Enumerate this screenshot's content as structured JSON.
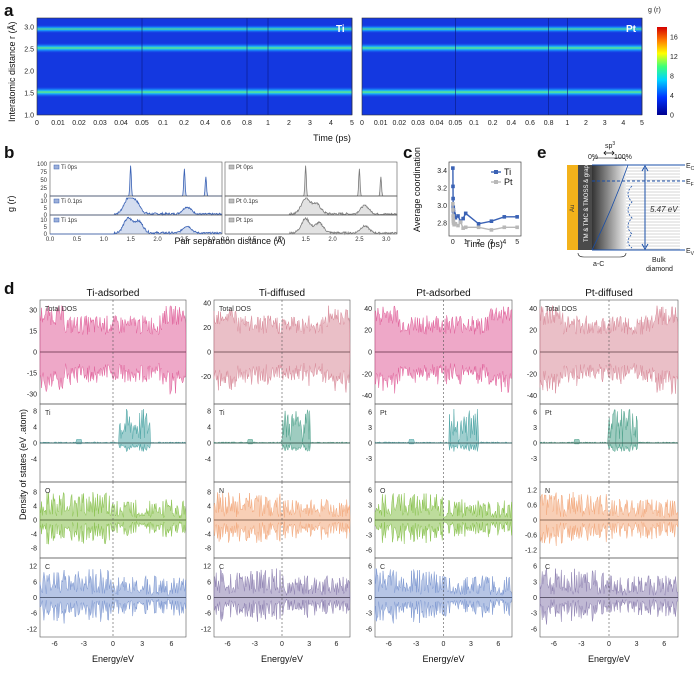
{
  "panel_labels": {
    "a": "a",
    "b": "b",
    "c": "c",
    "d": "d",
    "e": "e"
  },
  "chart_data": [
    {
      "panel": "a",
      "type": "heatmap",
      "ylabel": "Interatomic distance r (Å)",
      "xlabel": "Time (ps)",
      "colorbar_label": "g (r)",
      "colorbar_ticks": [
        "0",
        "4",
        "8",
        "12",
        "16"
      ],
      "colorbar_range": [
        0,
        18
      ],
      "ylim": [
        1.0,
        3.2
      ],
      "yticks": [
        "1.0",
        "1.5",
        "2.0",
        "2.5",
        "3.0"
      ],
      "xticks": [
        "0",
        "0.01",
        "0.02",
        "0.03",
        "0.04",
        "0.05",
        "0.1",
        "0.2",
        "0.4",
        "0.6",
        "0.8",
        "1",
        "2",
        "3",
        "4",
        "5"
      ],
      "maps": [
        {
          "name": "Ti",
          "bands": [
            {
              "r": 1.52,
              "intensity": 14
            },
            {
              "r": 2.52,
              "intensity": 13
            },
            {
              "r": 2.95,
              "intensity": 9
            }
          ]
        },
        {
          "name": "Pt",
          "bands": [
            {
              "r": 1.52,
              "intensity": 14
            },
            {
              "r": 2.52,
              "intensity": 13
            },
            {
              "r": 2.95,
              "intensity": 9
            }
          ]
        }
      ]
    },
    {
      "panel": "b",
      "type": "line",
      "ylabel": "g (r)",
      "xlabel": "Pair separation distance (Å)",
      "xlim": [
        0.0,
        3.2
      ],
      "xticks": [
        "0.0",
        "0.5",
        "1.0",
        "1.5",
        "2.0",
        "2.5",
        "3.0"
      ],
      "yticks": [
        "0",
        "25",
        "50",
        "75",
        "100"
      ],
      "top_ylim": [
        0,
        100
      ],
      "lower_yticks": [
        "0",
        "5",
        "10"
      ],
      "lower_ylim": [
        0,
        12
      ],
      "series": [
        {
          "name": "Ti 0ps",
          "color": "#3a62b5",
          "peaks": [
            {
              "x": 1.5,
              "y": 95
            },
            {
              "x": 2.5,
              "y": 85
            },
            {
              "x": 2.9,
              "y": 60
            }
          ]
        },
        {
          "name": "Pt 0ps",
          "color": "#7a7a7a",
          "peaks": [
            {
              "x": 1.5,
              "y": 95
            },
            {
              "x": 2.5,
              "y": 85
            },
            {
              "x": 2.9,
              "y": 60
            }
          ]
        },
        {
          "name": "Ti 0.1ps",
          "color": "#3a62b5",
          "peaks": [
            {
              "x": 1.45,
              "y": 10
            },
            {
              "x": 1.6,
              "y": 8
            },
            {
              "x": 2.55,
              "y": 5
            }
          ]
        },
        {
          "name": "Pt 0.1ps",
          "color": "#7a7a7a",
          "peaks": [
            {
              "x": 1.5,
              "y": 11
            },
            {
              "x": 1.7,
              "y": 7
            },
            {
              "x": 2.6,
              "y": 6
            }
          ]
        },
        {
          "name": "Ti 1ps",
          "color": "#3a62b5",
          "peaks": [
            {
              "x": 1.45,
              "y": 10
            },
            {
              "x": 1.65,
              "y": 8
            },
            {
              "x": 2.55,
              "y": 5
            }
          ]
        },
        {
          "name": "Pt 1ps",
          "color": "#7a7a7a",
          "peaks": [
            {
              "x": 1.5,
              "y": 10
            },
            {
              "x": 1.75,
              "y": 7
            },
            {
              "x": 2.6,
              "y": 5
            }
          ]
        }
      ]
    },
    {
      "panel": "c",
      "type": "line",
      "ylabel": "Average coordination",
      "xlabel": "Time (ps)",
      "xlim": [
        -0.3,
        5.3
      ],
      "ylim": [
        2.65,
        3.5
      ],
      "xticks": [
        0,
        1,
        2,
        3,
        4,
        5
      ],
      "yticks": [
        "2.8",
        "3.0",
        "3.2",
        "3.4"
      ],
      "legend_position": "top-right",
      "series": [
        {
          "name": "Ti",
          "color": "#3a62b5",
          "x": [
            0,
            0.01,
            0.02,
            0.03,
            0.04,
            0.05,
            0.1,
            0.2,
            0.4,
            0.6,
            0.8,
            1,
            2,
            3,
            4,
            5
          ],
          "y": [
            3.43,
            3.22,
            3.08,
            2.98,
            2.95,
            2.93,
            2.9,
            2.86,
            2.88,
            2.82,
            2.85,
            2.91,
            2.79,
            2.82,
            2.87,
            2.87
          ]
        },
        {
          "name": "Pt",
          "color": "#b8b8b8",
          "x": [
            0,
            0.01,
            0.02,
            0.03,
            0.04,
            0.05,
            0.1,
            0.2,
            0.4,
            0.6,
            0.8,
            1,
            2,
            3,
            4,
            5
          ],
          "y": [
            3.02,
            2.95,
            2.88,
            2.84,
            2.82,
            2.8,
            2.78,
            2.79,
            2.77,
            2.81,
            2.74,
            2.75,
            2.75,
            2.72,
            2.75,
            2.75
          ]
        }
      ]
    },
    {
      "panel": "d",
      "type": "area",
      "ylabel": "Density of states (eV .atom)",
      "xlabel": "Energy/eV",
      "xlim": [
        -7.5,
        7.5
      ],
      "xticks": [
        "-6",
        "-3",
        "0",
        "3",
        "6"
      ],
      "columns": [
        {
          "title": "Ti-adsorbed",
          "rows": [
            {
              "label": "Total DOS",
              "color": "#e0609a",
              "yticks": [
                "30",
                "15",
                "0",
                "-15",
                "-30"
              ],
              "ymax": 35
            },
            {
              "label": "Ti",
              "color": "#4fa6a6",
              "yticks": [
                "8",
                "4",
                "0",
                "-4"
              ],
              "ymax": 9
            },
            {
              "label": "O",
              "color": "#86c04a",
              "yticks": [
                "8",
                "4",
                "0",
                "-4",
                "-8"
              ],
              "ymax": 10
            },
            {
              "label": "C",
              "color": "#7a95d0",
              "yticks": [
                "12",
                "6",
                "0",
                "-6",
                "-12"
              ],
              "ymax": 14
            }
          ]
        },
        {
          "title": "Ti-diffused",
          "rows": [
            {
              "label": "Total DOS",
              "color": "#d88a99",
              "yticks": [
                "40",
                "20",
                "0",
                "-20"
              ],
              "ymax": 40
            },
            {
              "label": "Ti",
              "color": "#4fa28c",
              "yticks": [
                "8",
                "4",
                "0",
                "-4"
              ],
              "ymax": 9
            },
            {
              "label": "N",
              "color": "#f2a77a",
              "yticks": [
                "8",
                "4",
                "0",
                "-4",
                "-8"
              ],
              "ymax": 10
            },
            {
              "label": "C",
              "color": "#8c7fb0",
              "yticks": [
                "12",
                "6",
                "0",
                "-6",
                "-12"
              ],
              "ymax": 14
            }
          ]
        },
        {
          "title": "Pt-adsorbed",
          "rows": [
            {
              "label": "",
              "color": "#e0609a",
              "yticks": [
                "40",
                "20",
                "0",
                "-20",
                "-40"
              ],
              "ymax": 45
            },
            {
              "label": "Pt",
              "color": "#4fa6a6",
              "yticks": [
                "6",
                "3",
                "0",
                "-3"
              ],
              "ymax": 7
            },
            {
              "label": "O",
              "color": "#86c04a",
              "yticks": [
                "6",
                "3",
                "0",
                "-3",
                "-6"
              ],
              "ymax": 7
            },
            {
              "label": "C",
              "color": "#7a95d0",
              "yticks": [
                "6",
                "3",
                "0",
                "-3",
                "-6"
              ],
              "ymax": 7
            }
          ]
        },
        {
          "title": "Pt-diffused",
          "rows": [
            {
              "label": "Total DOS",
              "color": "#d88a99",
              "yticks": [
                "40",
                "20",
                "0",
                "-20",
                "-40"
              ],
              "ymax": 45
            },
            {
              "label": "Pt",
              "color": "#4fa28c",
              "yticks": [
                "6",
                "3",
                "0",
                "-3"
              ],
              "ymax": 7
            },
            {
              "label": "N",
              "color": "#f2a77a",
              "yticks": [
                "1.2",
                "0.6",
                "0",
                "-0.6",
                "-1.2"
              ],
              "ymax": 1.4
            },
            {
              "label": "C",
              "color": "#8c7fb0",
              "yticks": [
                "6",
                "3",
                "0",
                "-3",
                "-6"
              ],
              "ymax": 7
            }
          ]
        }
      ]
    }
  ],
  "panel_e": {
    "sp3_label": "sp",
    "sp3_sup": "3",
    "pct_left": "0%",
    "pct_right": "100%",
    "ec": "E",
    "ec_sub": "C",
    "ef": "E",
    "ef_sub": "F",
    "ev": "E",
    "ev_sub": "V",
    "gap": "5.47 eV",
    "metal": "Au",
    "layer_label": "TM & TMC & TMOSS & graphite",
    "ac_label": "a-C",
    "bulk_label_1": "Bulk",
    "bulk_label_2": "diamond"
  }
}
